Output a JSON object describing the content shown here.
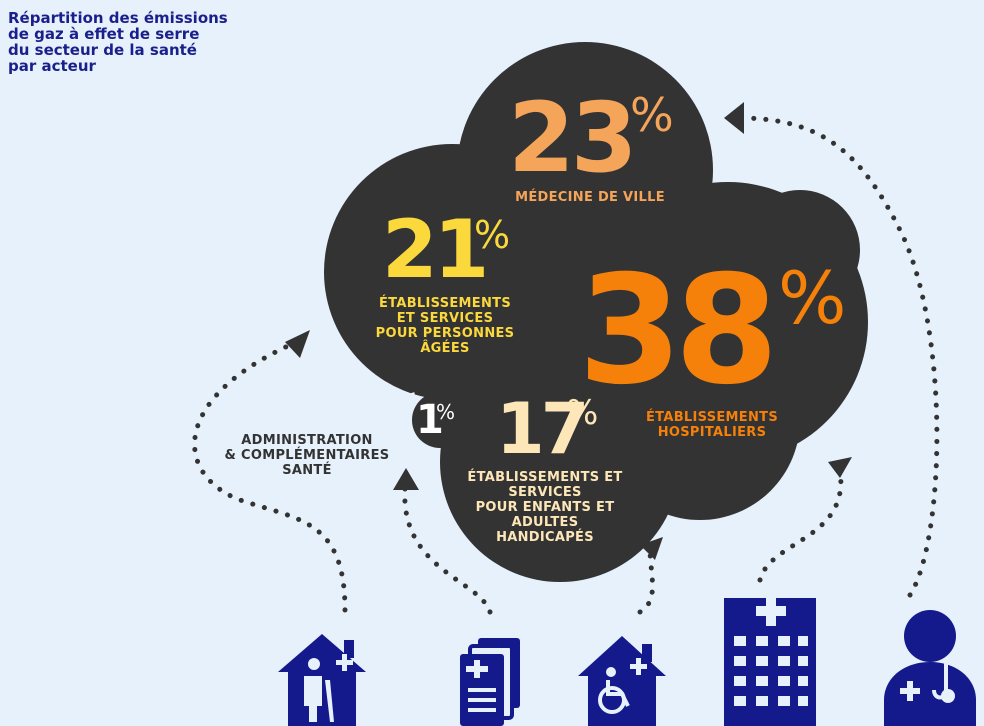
{
  "title_lines": [
    "Répartition des émissions",
    "de gaz à effet de serre",
    "du secteur de la santé",
    "par acteur"
  ],
  "chart_data": {
    "type": "pie",
    "categories": [
      "MÉDECINE DE VILLE",
      "ÉTABLISSEMENTS ET SERVICES POUR PERSONNES ÂGÉES",
      "ÉTABLISSEMENTS HOSPITALIERS",
      "ÉTABLISSEMENTS ET SERVICES POUR ENFANTS ET ADULTES HANDICAPÉS",
      "ADMINISTRATION & COMPLÉMENTAIRES SANTÉ"
    ],
    "values": [
      23,
      21,
      38,
      17,
      1
    ],
    "unit": "%"
  },
  "stats": {
    "medecine": {
      "value": "23",
      "pct": "%",
      "lines": [
        "MÉDECINE DE VILLE"
      ]
    },
    "agees": {
      "value": "21",
      "pct": "%",
      "lines": [
        "ÉTABLISSEMENTS",
        "ET SERVICES",
        "POUR  PERSONNES",
        "ÂGÉES"
      ]
    },
    "hospitaliers": {
      "value": "38",
      "pct": "%",
      "lines": [
        "ÉTABLISSEMENTS",
        "HOSPITALIERS"
      ]
    },
    "handicapes": {
      "value": "17",
      "pct": "%",
      "lines": [
        "ÉTABLISSEMENTS ET",
        "SERVICES",
        "POUR ENFANTS ET",
        "ADULTES",
        "HANDICAPÉS"
      ]
    },
    "administration": {
      "value": "1",
      "pct": "%",
      "lines": [
        "ADMINISTRATION",
        "& COMPLÉMENTAIRES",
        "SANTÉ"
      ]
    }
  },
  "colors": {
    "background": "#e6f1fb",
    "title": "#1a1f8c",
    "cloud": "#333333",
    "medecine": "#f5a55a",
    "agees": "#fbd83c",
    "hospitaliers": "#f5800a",
    "handicapes": "#fde7b8",
    "administration": "#ffffff",
    "dots": "#333333",
    "icons": "#141a8c"
  },
  "icons": [
    "elderly-house-icon",
    "documents-icon",
    "wheelchair-house-icon",
    "hospital-building-icon",
    "doctor-icon"
  ]
}
